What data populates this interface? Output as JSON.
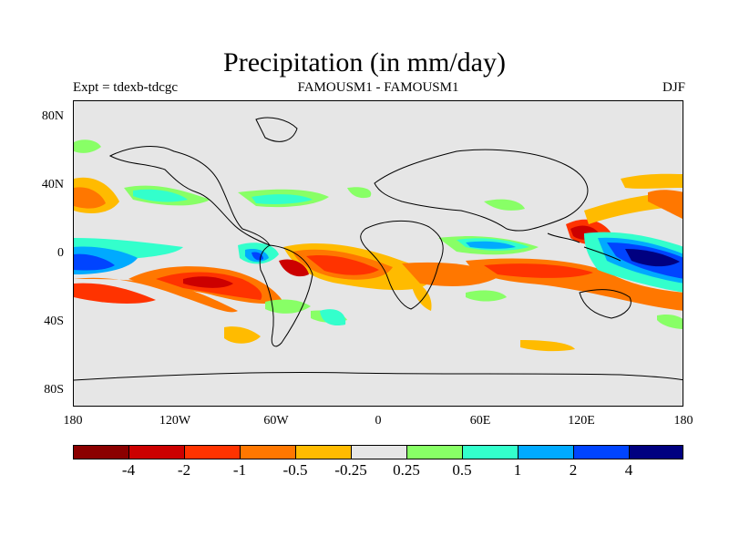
{
  "header": {
    "title": "Precipitation (in mm/day)",
    "left": "Expt = tdexb-tdcgc",
    "center": "FAMOUSM1 - FAMOUSM1",
    "right": "DJF"
  },
  "axes": {
    "y_ticks": [
      "80N",
      "40N",
      "0",
      "40S",
      "80S"
    ],
    "x_ticks": [
      "180",
      "120W",
      "60W",
      "0",
      "60E",
      "120E",
      "180"
    ]
  },
  "colorbar": {
    "colors": [
      "#8b0000",
      "#cc0000",
      "#ff3300",
      "#ff7700",
      "#ffbb00",
      "#e6e6e6",
      "#88ff66",
      "#33ffcc",
      "#00aaff",
      "#0044ff",
      "#000080"
    ],
    "labels": [
      "-4",
      "-2",
      "-1",
      "-0.5",
      "-0.25",
      "0.25",
      "0.5",
      "1",
      "2",
      "4"
    ]
  }
}
